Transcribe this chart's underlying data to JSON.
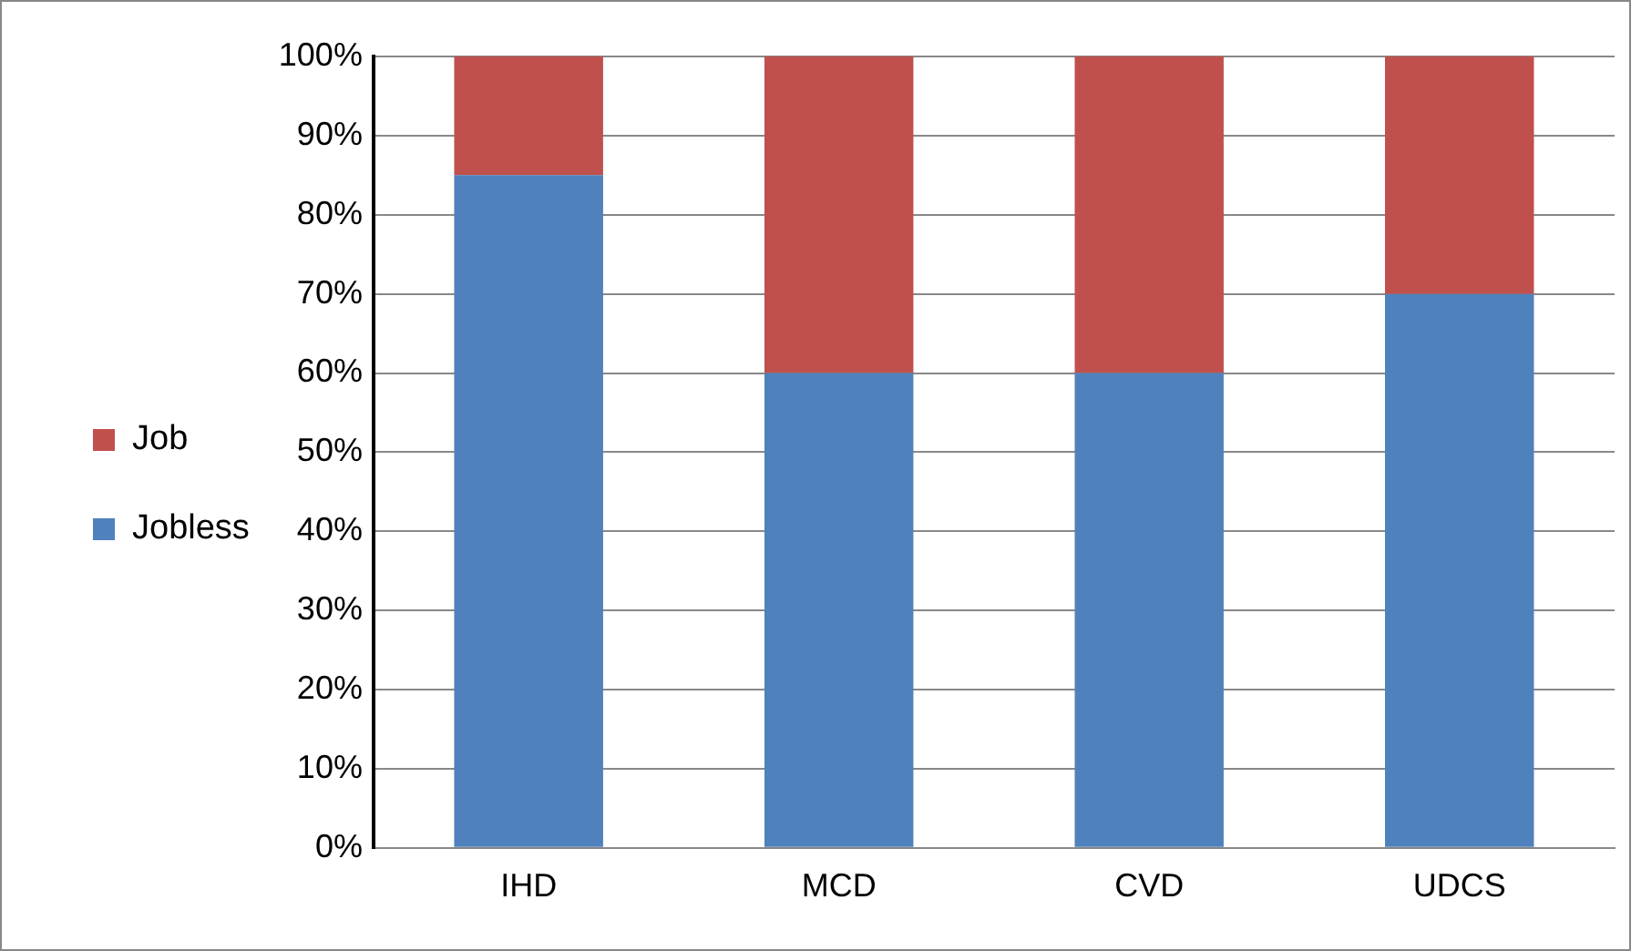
{
  "chart_data": {
    "type": "bar",
    "stacked": true,
    "categories": [
      "IHD",
      "MCD",
      "CVD",
      "UDCS"
    ],
    "series": [
      {
        "name": "Jobless",
        "color": "#4f81bd",
        "values": [
          85,
          60,
          60,
          70
        ]
      },
      {
        "name": "Job",
        "color": "#c0504d",
        "values": [
          15,
          40,
          40,
          30
        ]
      }
    ],
    "ylim": [
      0,
      100
    ],
    "yticks": [
      {
        "value": 0,
        "label": "0%"
      },
      {
        "value": 10,
        "label": "10%"
      },
      {
        "value": 20,
        "label": "20%"
      },
      {
        "value": 30,
        "label": "30%"
      },
      {
        "value": 40,
        "label": "40%"
      },
      {
        "value": 50,
        "label": "50%"
      },
      {
        "value": 60,
        "label": "60%"
      },
      {
        "value": 70,
        "label": "70%"
      },
      {
        "value": 80,
        "label": "80%"
      },
      {
        "value": 90,
        "label": "90%"
      },
      {
        "value": 100,
        "label": "100%"
      }
    ],
    "grid": "y",
    "legend": "left"
  }
}
